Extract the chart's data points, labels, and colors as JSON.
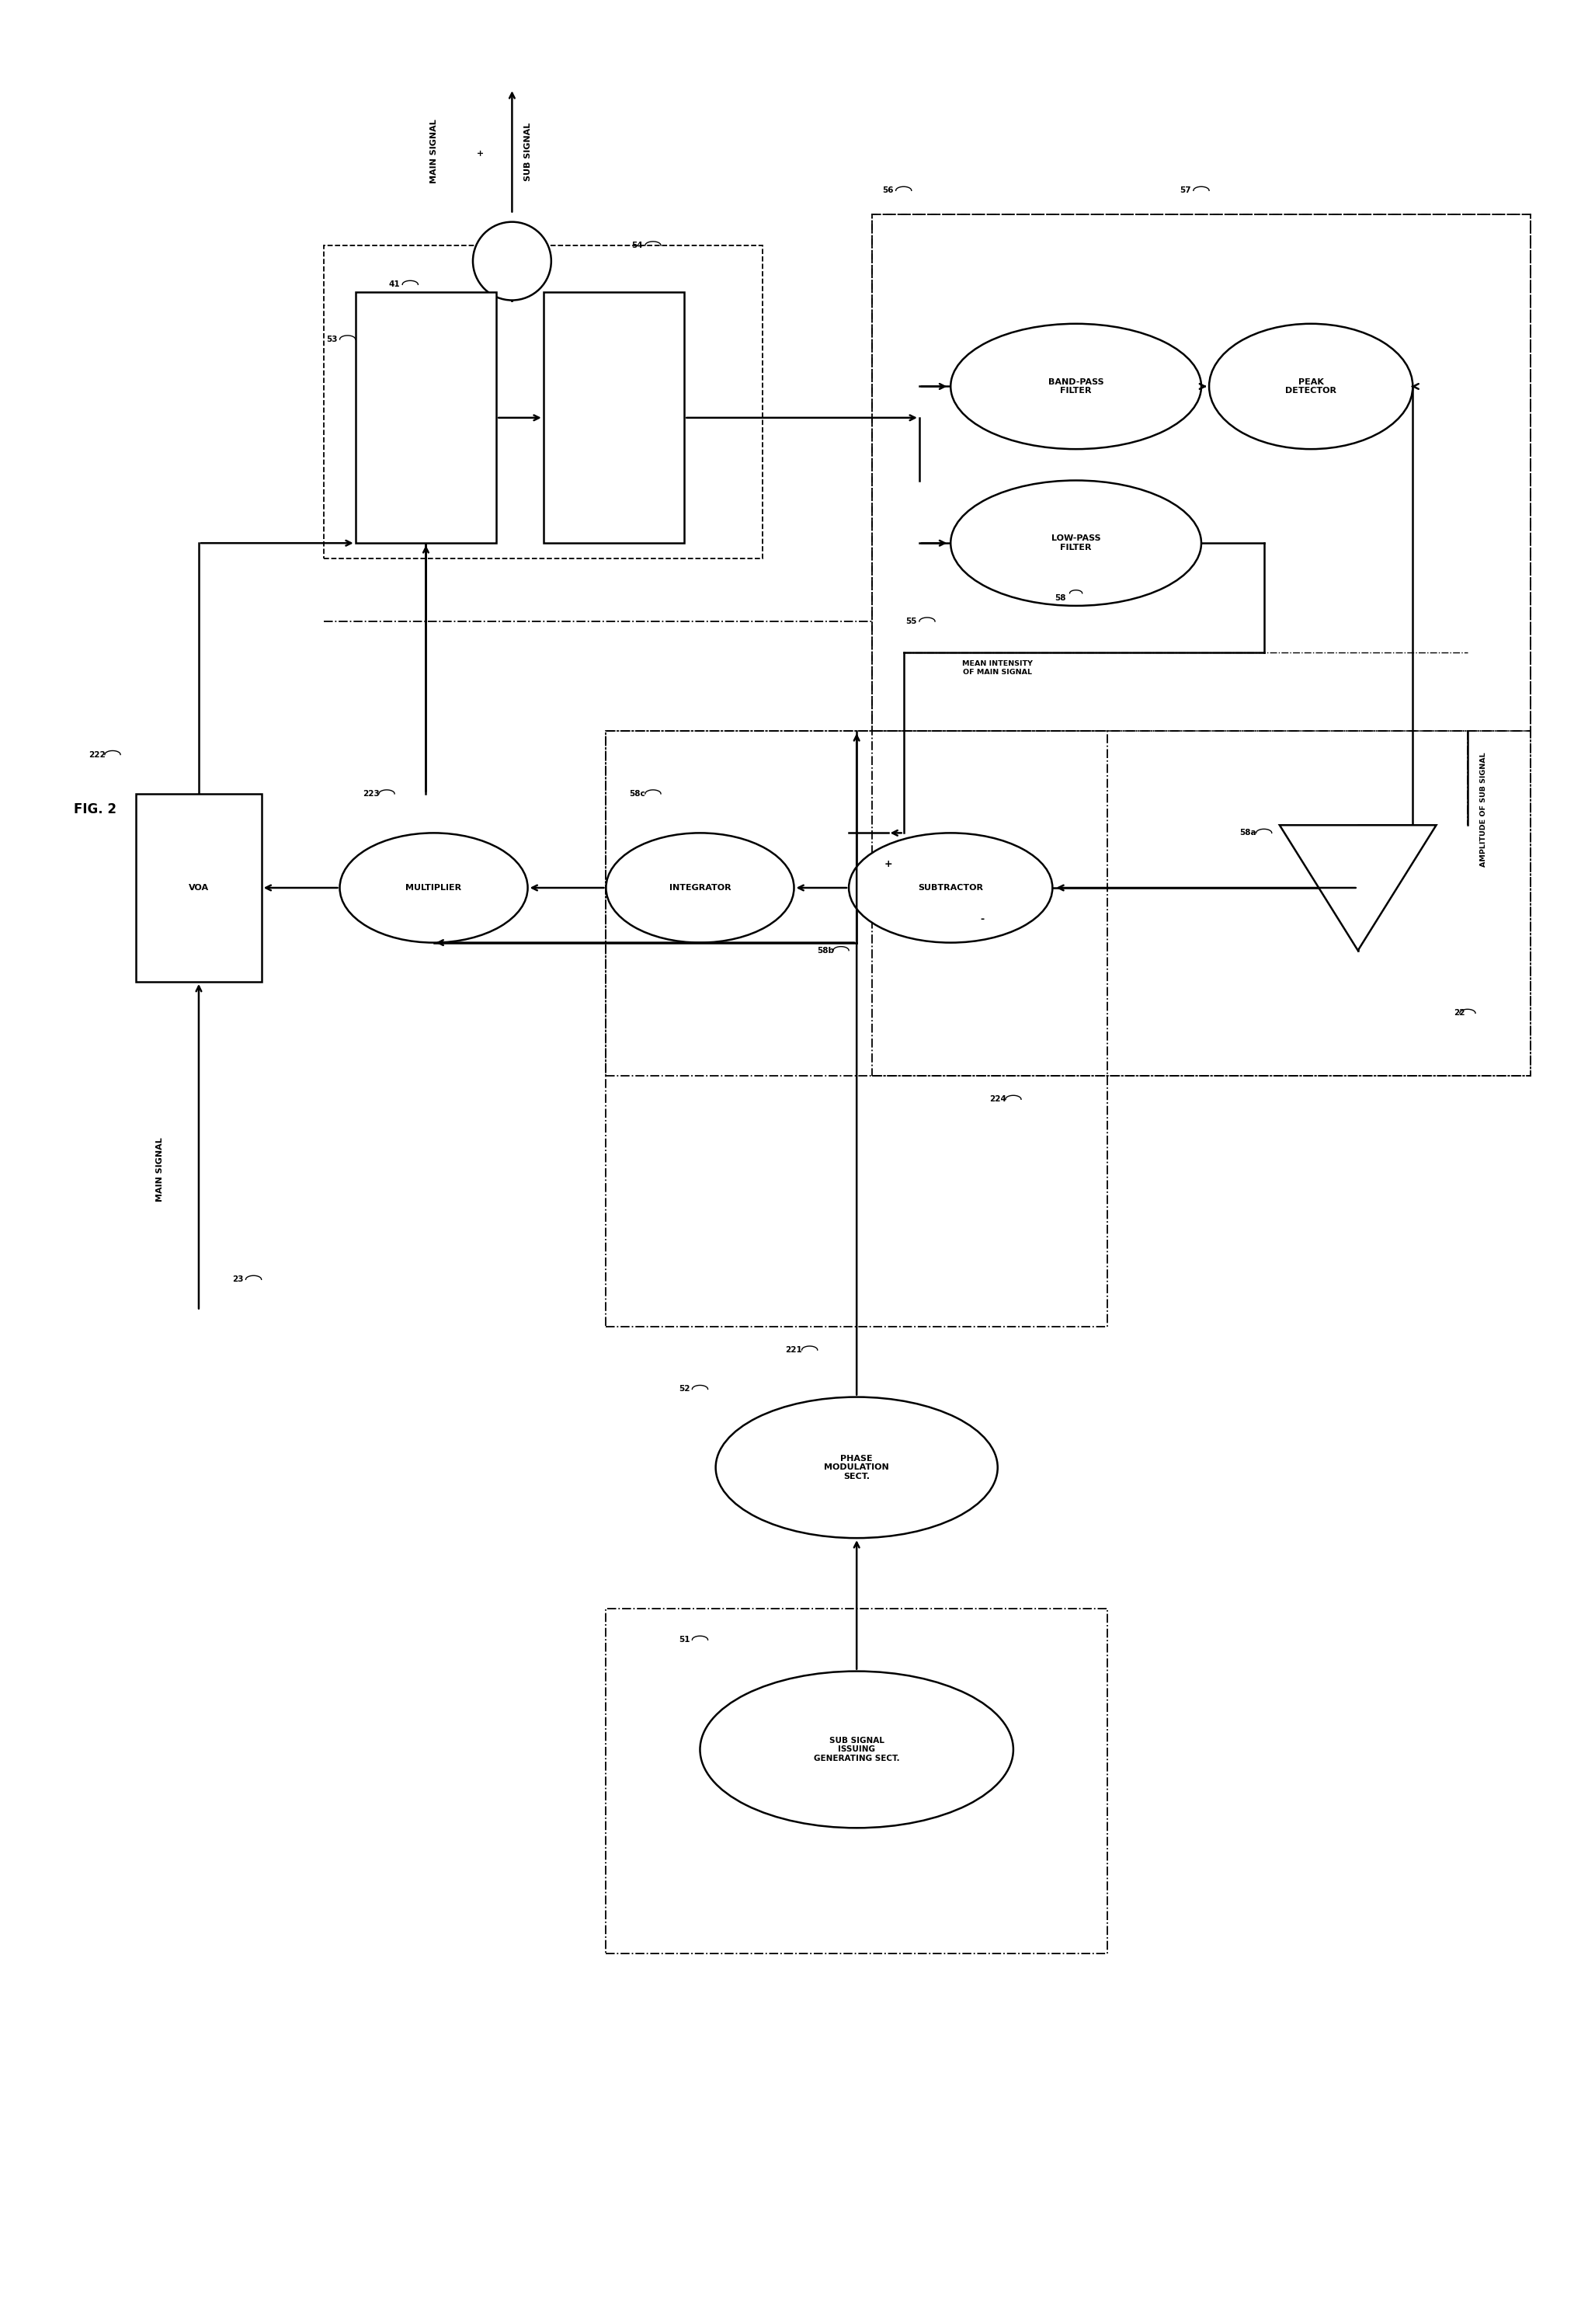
{
  "background_color": "#ffffff",
  "fig_width": 20.45,
  "fig_height": 29.92,
  "title": "FIG. 2",
  "labels": {
    "main_sub_signal_line1": "MAIN SIGNAL",
    "main_sub_signal_line2": "+",
    "main_sub_signal_line3": "SUB SIGNAL",
    "main_signal": "MAIN SIGNAL",
    "band_pass": "BAND-PASS\nFILTER",
    "low_pass": "LOW-PASS\nFILTER",
    "peak_det": "PEAK\nDETECTOR",
    "phase_mod": "PHASE\nMODULATION\nSECT.",
    "sub_sig_gen": "SUB SIGNAL\nISSUING\nGENERATING SECT.",
    "voa": "VOA",
    "multiplier": "MULTIPLIER",
    "integrator": "INTEGRATOR",
    "subtractor": "SUBTRACTOR",
    "mean_intensity": "MEAN INTENSITY\nOF MAIN SIGNAL",
    "amplitude_sub": "AMPLITUDE OF SUB SIGNAL",
    "plus": "+",
    "minus": "-"
  },
  "refs": {
    "r41": "41",
    "r51": "51",
    "r52": "52",
    "r53": "53",
    "r54": "54",
    "r55": "55",
    "r56": "56",
    "r57": "57",
    "r58": "58",
    "r58a": "58a",
    "r58b": "58b",
    "r58c": "58c",
    "r22": "22",
    "r23": "23",
    "r221": "221",
    "r222": "222",
    "r223": "223",
    "r224": "224"
  },
  "colors": {
    "black": "#000000",
    "white": "#ffffff"
  }
}
